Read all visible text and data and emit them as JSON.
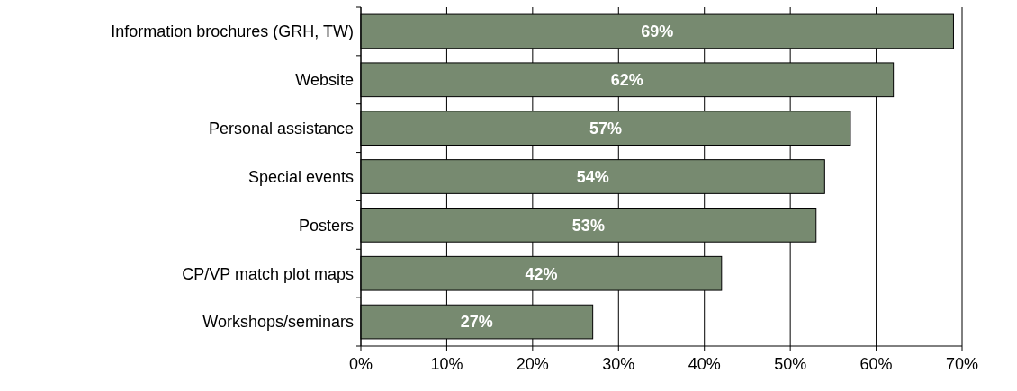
{
  "chart_data": {
    "type": "bar",
    "orientation": "horizontal",
    "categories": [
      "Information brochures (GRH, TW)",
      "Website",
      "Personal assistance",
      "Special events",
      "Posters",
      "CP/VP match plot maps",
      "Workshops/seminars"
    ],
    "values": [
      69,
      62,
      57,
      54,
      53,
      42,
      27
    ],
    "value_labels": [
      "69%",
      "62%",
      "57%",
      "54%",
      "53%",
      "42%",
      "27%"
    ],
    "color": "#778a70",
    "xlim": [
      0,
      70
    ],
    "xticks": [
      {
        "value": 0,
        "label": "0%"
      },
      {
        "value": 10,
        "label": "10%"
      },
      {
        "value": 20,
        "label": "20%"
      },
      {
        "value": 30,
        "label": "30%"
      },
      {
        "value": 40,
        "label": "40%"
      },
      {
        "value": 50,
        "label": "50%"
      },
      {
        "value": 60,
        "label": "60%"
      },
      {
        "value": 70,
        "label": "70%"
      }
    ],
    "grid": "x"
  }
}
